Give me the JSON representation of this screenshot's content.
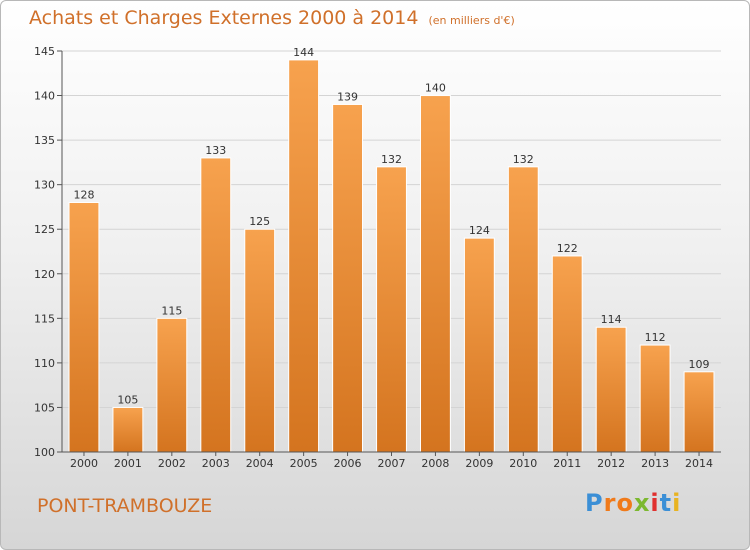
{
  "chart_data": {
    "type": "bar",
    "title": "Achats et Charges Externes 2000 à 2014",
    "subtitle": "(en milliers d'€)",
    "categories": [
      "2000",
      "2001",
      "2002",
      "2003",
      "2004",
      "2005",
      "2006",
      "2007",
      "2008",
      "2009",
      "2010",
      "2011",
      "2012",
      "2013",
      "2014"
    ],
    "values": [
      128,
      105,
      115,
      133,
      125,
      144,
      139,
      132,
      140,
      124,
      132,
      122,
      114,
      112,
      109
    ],
    "ylim": [
      100,
      145
    ],
    "yticks": [
      100,
      105,
      110,
      115,
      120,
      125,
      130,
      135,
      140,
      145
    ],
    "grid": true,
    "bar_color": "#f0913a"
  },
  "footer": {
    "location": "PONT-TRAMBOUZE",
    "logo_letters": [
      "P",
      "r",
      "o",
      "x",
      "i",
      "t",
      "i"
    ],
    "logo_colors": [
      "#3b8fd6",
      "#f07a1a",
      "#f07a1a",
      "#7cb82f",
      "#e0302e",
      "#3b8fd6",
      "#e8b321"
    ]
  }
}
